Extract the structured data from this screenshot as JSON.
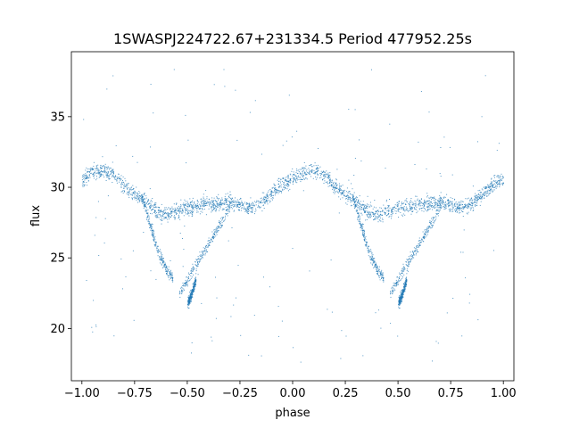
{
  "chart_data": {
    "type": "scatter",
    "title": "1SWASPJ224722.67+231334.5 Period 477952.25s",
    "xlabel": "phase",
    "ylabel": "flux",
    "xlim": [
      -1.05,
      1.05
    ],
    "ylim": [
      16.3,
      39.6
    ],
    "xticks": [
      -1.0,
      -0.75,
      -0.5,
      -0.25,
      0.0,
      0.25,
      0.5,
      0.75,
      1.0
    ],
    "xtick_labels": [
      "−1.00",
      "−0.75",
      "−0.50",
      "−0.25",
      "0.00",
      "0.25",
      "0.50",
      "0.75",
      "1.00"
    ],
    "yticks": [
      20,
      25,
      30,
      35
    ],
    "ytick_labels": [
      "20",
      "25",
      "30",
      "35"
    ],
    "grid": false,
    "legend": "none",
    "point_color": "#1f77b4",
    "folded_curve": {
      "phase": [
        0.0,
        0.05,
        0.1,
        0.15,
        0.2,
        0.25,
        0.3,
        0.35,
        0.4,
        0.45,
        0.5,
        0.55,
        0.6,
        0.65,
        0.7,
        0.75,
        0.8,
        0.85,
        0.9,
        0.95,
        1.0
      ],
      "flux": [
        30.6,
        31.1,
        31.2,
        30.9,
        30.1,
        29.5,
        29.0,
        28.3,
        28.0,
        28.4,
        28.6,
        28.7,
        28.8,
        28.9,
        29.0,
        28.8,
        28.6,
        28.9,
        29.6,
        30.2,
        30.6
      ]
    },
    "dip_branches": [
      {
        "phase": [
          0.28,
          0.32,
          0.36,
          0.4,
          0.43
        ],
        "flux": [
          29.5,
          27.5,
          25.5,
          24.2,
          23.6
        ]
      },
      {
        "phase": [
          0.46,
          0.5,
          0.55,
          0.6,
          0.65,
          0.7
        ],
        "flux": [
          22.5,
          23.5,
          24.8,
          26.0,
          27.3,
          28.6
        ]
      },
      {
        "phase": [
          0.5,
          0.52,
          0.54
        ],
        "flux": [
          21.8,
          22.5,
          23.5
        ]
      }
    ],
    "outlier_flux_range": [
      17.5,
      38.6
    ]
  }
}
